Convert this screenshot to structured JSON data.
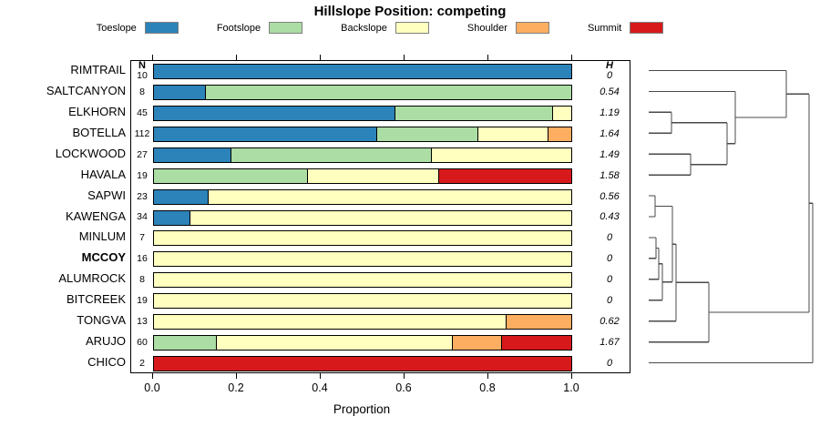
{
  "chart_data": {
    "type": "bar",
    "orientation": "horizontal-stacked",
    "title": "Hillslope Position: competing",
    "xlabel": "Proportion",
    "xlim": [
      0,
      1
    ],
    "x_ticks": [
      {
        "value": 0.0,
        "label": "0.0"
      },
      {
        "value": 0.2,
        "label": "0.2"
      },
      {
        "value": 0.4,
        "label": "0.4"
      },
      {
        "value": 0.6,
        "label": "0.6"
      },
      {
        "value": 0.8,
        "label": "0.8"
      },
      {
        "value": 1.0,
        "label": "1.0"
      }
    ],
    "legend_position": "top",
    "col_n_label": "N",
    "col_h_label": "H",
    "series_names": [
      "Toeslope",
      "Footslope",
      "Backslope",
      "Shoulder",
      "Summit"
    ],
    "series_colors": [
      "#2B83BA",
      "#ABDDA4",
      "#FFFFBF",
      "#FDAE61",
      "#D7191C"
    ],
    "rows": [
      {
        "label": "RIMTRAIL",
        "n": 10,
        "h": "0",
        "bold": false,
        "values": [
          1,
          0,
          0,
          0,
          0
        ]
      },
      {
        "label": "SALTCANYON",
        "n": 8,
        "h": "0.54",
        "bold": false,
        "values": [
          0.125,
          0.875,
          0,
          0,
          0
        ]
      },
      {
        "label": "ELKHORN",
        "n": 45,
        "h": "1.19",
        "bold": false,
        "values": [
          0.578,
          0.378,
          0.044,
          0,
          0
        ]
      },
      {
        "label": "BOTELLA",
        "n": 112,
        "h": "1.64",
        "bold": false,
        "values": [
          0.536,
          0.241,
          0.169,
          0.054,
          0
        ]
      },
      {
        "label": "LOCKWOOD",
        "n": 27,
        "h": "1.49",
        "bold": false,
        "values": [
          0.185,
          0.482,
          0.333,
          0,
          0
        ]
      },
      {
        "label": "HAVALA",
        "n": 19,
        "h": "1.58",
        "bold": false,
        "values": [
          0,
          0.368,
          0.316,
          0,
          0.316
        ]
      },
      {
        "label": "SAPWI",
        "n": 23,
        "h": "0.56",
        "bold": false,
        "values": [
          0.13,
          0,
          0.87,
          0,
          0
        ]
      },
      {
        "label": "KAWENGA",
        "n": 34,
        "h": "0.43",
        "bold": false,
        "values": [
          0.088,
          0,
          0.912,
          0,
          0
        ]
      },
      {
        "label": "MINLUM",
        "n": 7,
        "h": "0",
        "bold": false,
        "values": [
          0,
          0,
          1,
          0,
          0
        ]
      },
      {
        "label": "MCCOY",
        "n": 16,
        "h": "0",
        "bold": true,
        "values": [
          0,
          0,
          1,
          0,
          0
        ]
      },
      {
        "label": "ALUMROCK",
        "n": 8,
        "h": "0",
        "bold": false,
        "values": [
          0,
          0,
          1,
          0,
          0
        ]
      },
      {
        "label": "BITCREEK",
        "n": 19,
        "h": "0",
        "bold": false,
        "values": [
          0,
          0,
          1,
          0,
          0
        ]
      },
      {
        "label": "TONGVA",
        "n": 13,
        "h": "0.62",
        "bold": false,
        "values": [
          0,
          0,
          0.846,
          0.154,
          0
        ]
      },
      {
        "label": "ARUJO",
        "n": 60,
        "h": "1.67",
        "bold": false,
        "values": [
          0,
          0.15,
          0.567,
          0.117,
          0.167
        ]
      },
      {
        "label": "CHICO",
        "n": 2,
        "h": "0",
        "bold": false,
        "values": [
          0,
          0,
          0,
          0,
          1
        ]
      }
    ],
    "dendrogram": {
      "leaf_x": 712,
      "line_color": "#4a4a4a",
      "merges": [
        {
          "id": "M1",
          "a": "L2",
          "b": "L3",
          "d": 25
        },
        {
          "id": "M2",
          "a": "L4",
          "b": "L5",
          "d": 46
        },
        {
          "id": "M3",
          "a": "M1",
          "b": "M2",
          "d": 86
        },
        {
          "id": "M4",
          "a": "L1",
          "b": "M3",
          "d": 95
        },
        {
          "id": "M5",
          "a": "L0",
          "b": "M4",
          "d": 151
        },
        {
          "id": "M6",
          "a": "L6",
          "b": "L7",
          "d": 7
        },
        {
          "id": "M7",
          "a": "L8",
          "b": "L9",
          "d": 8
        },
        {
          "id": "M8",
          "a": "M7",
          "b": "L10",
          "d": 11
        },
        {
          "id": "M9",
          "a": "M8",
          "b": "L11",
          "d": 15
        },
        {
          "id": "M10",
          "a": "M6",
          "b": "M9",
          "d": 26
        },
        {
          "id": "M11",
          "a": "M10",
          "b": "L12",
          "d": 30
        },
        {
          "id": "M12",
          "a": "M11",
          "b": "L13",
          "d": 66
        },
        {
          "id": "M13",
          "a": "M5",
          "b": "M12",
          "d": 176
        },
        {
          "id": "M14",
          "a": "M13",
          "b": "L14",
          "d": 180
        }
      ]
    }
  }
}
